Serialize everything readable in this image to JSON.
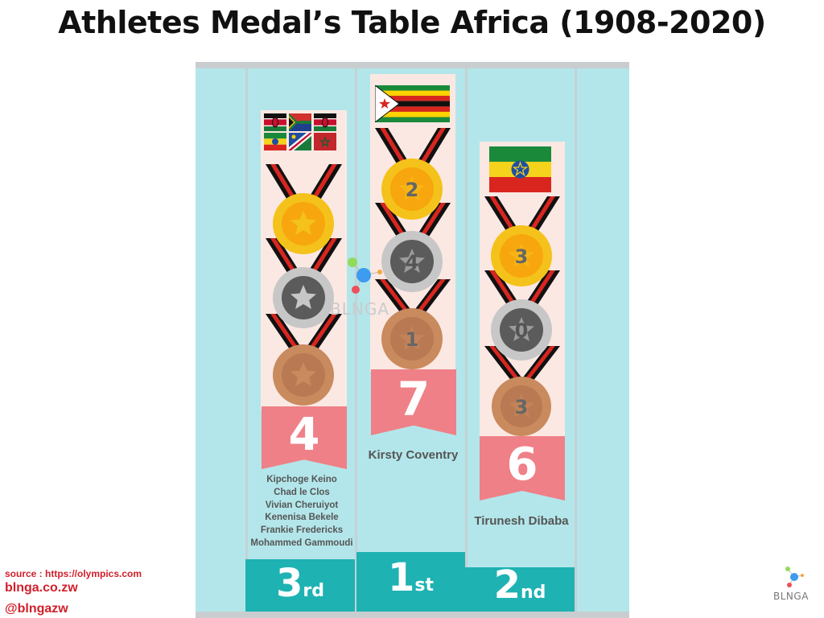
{
  "title": "Athletes Medal’s Table Africa (1908-2020)",
  "chart_data": {
    "type": "podium",
    "title": "Athletes Medal’s Table Africa (1908-2020)",
    "entries": [
      {
        "rank": "3",
        "rank_suffix": "rd",
        "total": 4,
        "gold": null,
        "silver": null,
        "bronze": null,
        "athletes": [
          "Kipchoge Keino",
          "Chad le Clos",
          "Vivian Cheruiyot",
          "Kenenisa Bekele",
          "Frankie Fredericks",
          "Mohammed Gammoudi"
        ],
        "countries": [
          "Kenya",
          "South Africa",
          "Kenya",
          "Ethiopia",
          "Namibia",
          "Tunisia"
        ]
      },
      {
        "rank": "1",
        "rank_suffix": "st",
        "total": 7,
        "gold": 2,
        "silver": 4,
        "bronze": 1,
        "athletes": [
          "Kirsty Coventry"
        ],
        "countries": [
          "Zimbabwe"
        ]
      },
      {
        "rank": "2",
        "rank_suffix": "nd",
        "total": 6,
        "gold": 3,
        "silver": 0,
        "bronze": 3,
        "athletes": [
          "Tirunesh Dibaba"
        ],
        "countries": [
          "Ethiopia"
        ]
      }
    ]
  },
  "colors": {
    "gold": "#f4c21a",
    "silver": "#c7c7c7",
    "bronze": "#c98a5e",
    "ribbon": "#ef8088",
    "podium": "#1fb2b3",
    "stage": "#b3e6ea",
    "accent": "#d11f2a"
  },
  "footer": {
    "source": "source : https://olympics.com",
    "site": "blnga.co.zw",
    "handle": "@blngazw"
  },
  "brand": {
    "logo_text": "BLNGA"
  }
}
